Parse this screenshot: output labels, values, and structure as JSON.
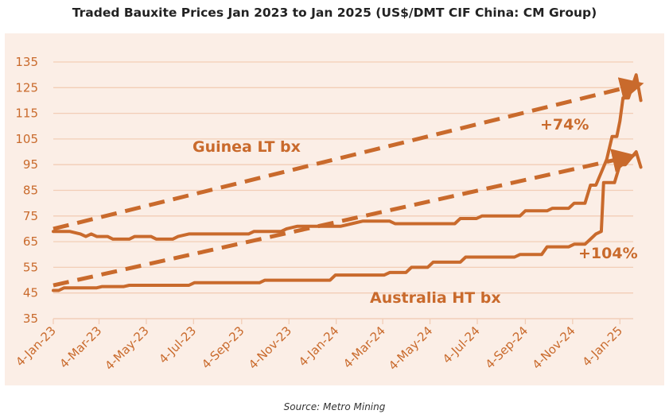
{
  "chart_data": {
    "type": "line",
    "title": "Traded Bauxite Prices Jan 2023 to Jan 2025 (US$/DMT CIF China: CM Group)",
    "source": "Source: Metro Mining",
    "ylim": [
      35,
      135
    ],
    "yticks": [
      35,
      45,
      55,
      65,
      75,
      85,
      95,
      105,
      115,
      125,
      135
    ],
    "xlim": [
      "2023-01-04",
      "2025-01-15"
    ],
    "xticks": [
      "4-Jan-23",
      "4-Mar-23",
      "4-May-23",
      "4-Jul-23",
      "4-Sep-23",
      "4-Nov-23",
      "4-Jan-24",
      "4-Mar-24",
      "4-May-24",
      "4-Jul-24",
      "4-Sep-24",
      "4-Nov-24",
      "4-Jan-25"
    ],
    "grid": "horizontal",
    "color": "#c96a2c",
    "series": [
      {
        "name": "Guinea LT bx",
        "points": [
          [
            "2023-01-04",
            69
          ],
          [
            "2023-01-25",
            69
          ],
          [
            "2023-02-08",
            68
          ],
          [
            "2023-02-15",
            67
          ],
          [
            "2023-02-22",
            68
          ],
          [
            "2023-03-01",
            67
          ],
          [
            "2023-03-15",
            67
          ],
          [
            "2023-03-22",
            66
          ],
          [
            "2023-04-12",
            66
          ],
          [
            "2023-04-19",
            67
          ],
          [
            "2023-05-10",
            67
          ],
          [
            "2023-05-17",
            66
          ],
          [
            "2023-06-07",
            66
          ],
          [
            "2023-06-14",
            67
          ],
          [
            "2023-06-28",
            68
          ],
          [
            "2023-09-13",
            68
          ],
          [
            "2023-09-20",
            69
          ],
          [
            "2023-10-25",
            69
          ],
          [
            "2023-11-01",
            70
          ],
          [
            "2023-11-15",
            71
          ],
          [
            "2024-01-10",
            71
          ],
          [
            "2024-01-24",
            72
          ],
          [
            "2024-02-07",
            73
          ],
          [
            "2024-03-13",
            73
          ],
          [
            "2024-03-20",
            72
          ],
          [
            "2024-06-05",
            72
          ],
          [
            "2024-06-12",
            74
          ],
          [
            "2024-07-03",
            74
          ],
          [
            "2024-07-10",
            75
          ],
          [
            "2024-08-28",
            75
          ],
          [
            "2024-09-04",
            77
          ],
          [
            "2024-10-02",
            77
          ],
          [
            "2024-10-09",
            78
          ],
          [
            "2024-10-30",
            78
          ],
          [
            "2024-11-06",
            80
          ],
          [
            "2024-11-20",
            80
          ],
          [
            "2024-11-27",
            87
          ],
          [
            "2024-12-04",
            87
          ],
          [
            "2024-12-11",
            92
          ],
          [
            "2024-12-18",
            97
          ],
          [
            "2024-12-25",
            106
          ],
          [
            "2024-12-31",
            106
          ],
          [
            "2025-01-04",
            112
          ],
          [
            "2025-01-08",
            121
          ],
          [
            "2025-01-15",
            121
          ],
          [
            "2025-01-25",
            130
          ],
          [
            "2025-01-31",
            120
          ]
        ],
        "trend": {
          "from": [
            "2023-01-04",
            70
          ],
          "to": [
            "2025-01-25",
            126
          ]
        },
        "change_label": "+74%"
      },
      {
        "name": "Australia HT bx",
        "points": [
          [
            "2023-01-04",
            46
          ],
          [
            "2023-01-11",
            46
          ],
          [
            "2023-01-18",
            47
          ],
          [
            "2023-03-01",
            47
          ],
          [
            "2023-03-08",
            47.5
          ],
          [
            "2023-04-05",
            47.5
          ],
          [
            "2023-04-12",
            48
          ],
          [
            "2023-06-28",
            48
          ],
          [
            "2023-07-05",
            49
          ],
          [
            "2023-09-27",
            49
          ],
          [
            "2023-10-04",
            50
          ],
          [
            "2023-12-27",
            50
          ],
          [
            "2024-01-03",
            52
          ],
          [
            "2024-03-06",
            52
          ],
          [
            "2024-03-13",
            53
          ],
          [
            "2024-04-03",
            53
          ],
          [
            "2024-04-10",
            55
          ],
          [
            "2024-05-01",
            55
          ],
          [
            "2024-05-08",
            57
          ],
          [
            "2024-06-12",
            57
          ],
          [
            "2024-06-19",
            59
          ],
          [
            "2024-08-21",
            59
          ],
          [
            "2024-08-28",
            60
          ],
          [
            "2024-09-25",
            60
          ],
          [
            "2024-10-02",
            63
          ],
          [
            "2024-10-30",
            63
          ],
          [
            "2024-11-06",
            64
          ],
          [
            "2024-11-20",
            64
          ],
          [
            "2024-11-27",
            66
          ],
          [
            "2024-12-04",
            68
          ],
          [
            "2024-12-11",
            69
          ],
          [
            "2024-12-14",
            88
          ],
          [
            "2024-12-28",
            88
          ],
          [
            "2025-01-04",
            95
          ],
          [
            "2025-01-11",
            95
          ],
          [
            "2025-01-25",
            100
          ],
          [
            "2025-01-31",
            94
          ]
        ],
        "trend": {
          "from": [
            "2023-01-04",
            48
          ],
          "to": [
            "2025-01-15",
            98
          ]
        },
        "change_label": "+104%"
      }
    ]
  }
}
